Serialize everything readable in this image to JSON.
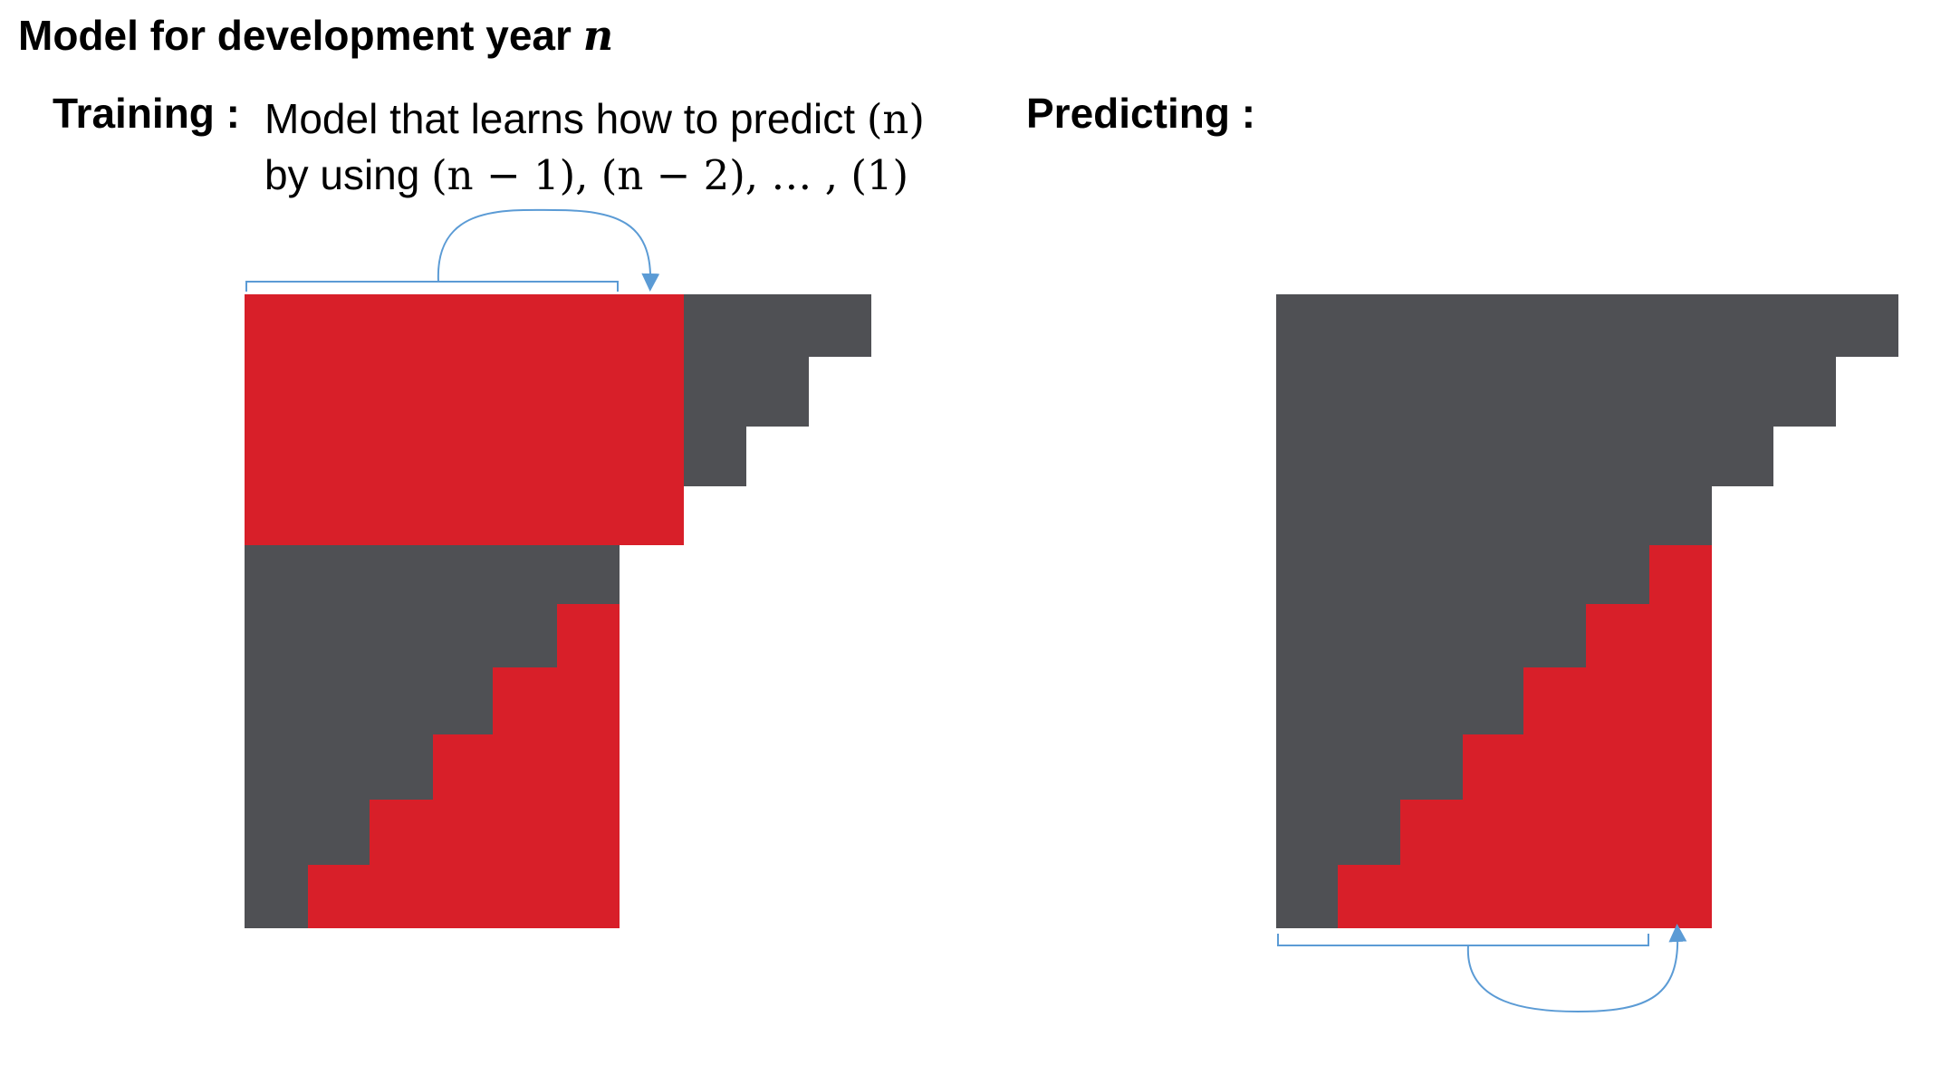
{
  "title": {
    "text": "Model for development year ",
    "variable": "n"
  },
  "training": {
    "label": "Training :",
    "description_line1_text": "Model that learns how to predict ",
    "description_line1_math": "(n)",
    "description_line2_text": "by using ",
    "description_line2_math": "(n − 1), (n − 2), … , (1)"
  },
  "predicting": {
    "label": "Predicting :"
  },
  "colors": {
    "dark_gray": "#4f5054",
    "red": "#d81f29",
    "arrow_blue": "#5b9bd5"
  }
}
